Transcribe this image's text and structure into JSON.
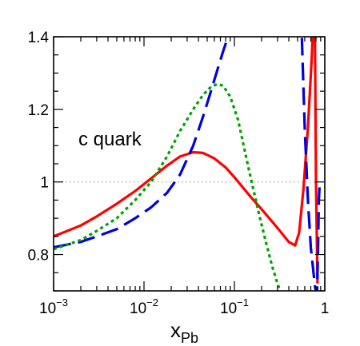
{
  "chart_data": {
    "type": "line",
    "title": "",
    "xlabel": "x",
    "xlabel_subscript": "Pb",
    "ylabel": "",
    "xscale": "log",
    "xlim": [
      0.001,
      1
    ],
    "ylim": [
      0.7,
      1.4
    ],
    "xticks": [
      {
        "value": 0.001,
        "base": "10",
        "exp": "−3"
      },
      {
        "value": 0.01,
        "base": "10",
        "exp": "−2"
      },
      {
        "value": 0.1,
        "base": "10",
        "exp": "−1"
      },
      {
        "value": 1,
        "base": "1",
        "exp": ""
      }
    ],
    "yticks": [
      {
        "value": 0.8,
        "label": "0.8"
      },
      {
        "value": 1.0,
        "label": "1"
      },
      {
        "value": 1.2,
        "label": "1.2"
      },
      {
        "value": 1.4,
        "label": "1.4"
      }
    ],
    "reference_line": {
      "y": 1.0,
      "style": "dotted",
      "color": "#bbbbbb"
    },
    "annotation": "c quark",
    "grid": false,
    "series": [
      {
        "color": "#ff0000",
        "style": "solid",
        "x": [
          0.001,
          0.002,
          0.003,
          0.005,
          0.008,
          0.012,
          0.018,
          0.025,
          0.035,
          0.045,
          0.06,
          0.08,
          0.1,
          0.15,
          0.2,
          0.3,
          0.4,
          0.47,
          0.52,
          0.58,
          0.65,
          0.72,
          0.77,
          0.8,
          0.83
        ],
        "y": [
          0.85,
          0.88,
          0.905,
          0.94,
          0.975,
          1.01,
          1.045,
          1.07,
          1.082,
          1.08,
          1.065,
          1.04,
          1.013,
          0.96,
          0.925,
          0.873,
          0.835,
          0.825,
          0.86,
          0.98,
          1.15,
          1.35,
          1.55,
          1.0,
          0.72
        ]
      },
      {
        "color": "#0000e0",
        "style": "dashed",
        "x": [
          0.001,
          0.002,
          0.003,
          0.005,
          0.008,
          0.012,
          0.018,
          0.025,
          0.035,
          0.045,
          0.055,
          0.065,
          0.075,
          0.085,
          0.095,
          0.55,
          0.6,
          0.65,
          0.7,
          0.75,
          0.78,
          0.82,
          0.84,
          0.86,
          0.88
        ],
        "y": [
          0.82,
          0.835,
          0.85,
          0.87,
          0.9,
          0.93,
          0.97,
          1.02,
          1.1,
          1.18,
          1.25,
          1.31,
          1.36,
          1.4,
          1.44,
          1.44,
          1.15,
          0.95,
          0.82,
          0.75,
          0.71,
          0.69,
          0.8,
          0.95,
          1.0
        ]
      },
      {
        "color": "#00a000",
        "style": "dotted",
        "x": [
          0.001,
          0.002,
          0.003,
          0.005,
          0.008,
          0.012,
          0.018,
          0.025,
          0.035,
          0.045,
          0.055,
          0.065,
          0.075,
          0.09,
          0.11,
          0.14,
          0.18,
          0.22,
          0.26,
          0.3,
          0.33
        ],
        "y": [
          0.815,
          0.84,
          0.865,
          0.9,
          0.95,
          1.0,
          1.07,
          1.14,
          1.2,
          1.24,
          1.262,
          1.27,
          1.265,
          1.235,
          1.17,
          1.05,
          0.93,
          0.84,
          0.77,
          0.72,
          0.69
        ]
      }
    ]
  }
}
